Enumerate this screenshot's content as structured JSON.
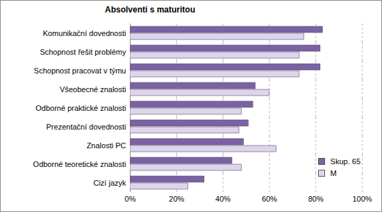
{
  "chart_data": {
    "type": "bar",
    "title": "Absolventi s maturitou",
    "orientation": "horizontal",
    "categories": [
      "Komunikační dovednosti",
      "Schopnost řešit problémy",
      "Schopnost pracovat v týmu",
      "Všeobecné znalosti",
      "Odborné praktické znalosti",
      "Prezentační dovednosti",
      "Znalosti PC",
      "Odborné teoretické znalosti",
      "Cizí jazyk"
    ],
    "series": [
      {
        "name": "Skup. 65",
        "color": "#7b62a3",
        "values": [
          83,
          82,
          82,
          54,
          53,
          51,
          49,
          44,
          32
        ]
      },
      {
        "name": "M",
        "color": "#ddd5ea",
        "values": [
          75,
          73,
          73,
          60,
          48,
          47,
          63,
          48,
          25
        ]
      }
    ],
    "xlim": [
      0,
      100
    ],
    "xticks": [
      {
        "value": 0,
        "label": "0%"
      },
      {
        "value": 20,
        "label": "20%"
      },
      {
        "value": 40,
        "label": "40%"
      },
      {
        "value": 60,
        "label": "60%"
      },
      {
        "value": 80,
        "label": "80%"
      },
      {
        "value": 100,
        "label": "100%"
      }
    ],
    "grid": true,
    "legend": "lower right"
  }
}
